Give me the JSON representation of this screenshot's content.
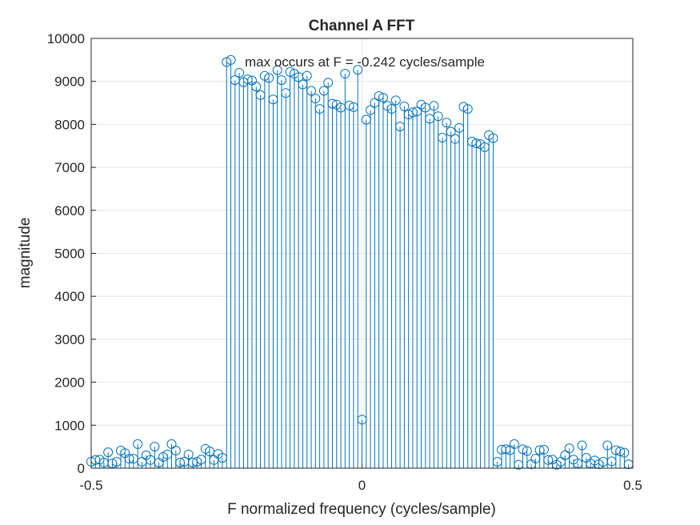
{
  "chart_data": {
    "type": "stem",
    "title": "Channel A FFT",
    "x_label": "F normalized frequency (cycles/sample)",
    "y_label": "magnitude",
    "annotation": "max occurs at F = -0.242 cycles/sample",
    "x": [
      -0.5,
      -0.4921875,
      -0.484375,
      -0.4765625,
      -0.46875,
      -0.4609375,
      -0.453125,
      -0.4453125,
      -0.4375,
      -0.4296875,
      -0.421875,
      -0.4140625,
      -0.40625,
      -0.3984375,
      -0.390625,
      -0.3828125,
      -0.375,
      -0.3671875,
      -0.359375,
      -0.3515625,
      -0.34375,
      -0.3359375,
      -0.328125,
      -0.3203125,
      -0.3125,
      -0.3046875,
      -0.296875,
      -0.2890625,
      -0.28125,
      -0.2734375,
      -0.265625,
      -0.2578125,
      -0.25,
      -0.2421875,
      -0.234375,
      -0.2265625,
      -0.21875,
      -0.2109375,
      -0.203125,
      -0.1953125,
      -0.1875,
      -0.1796875,
      -0.171875,
      -0.1640625,
      -0.15625,
      -0.1484375,
      -0.140625,
      -0.1328125,
      -0.125,
      -0.1171875,
      -0.109375,
      -0.1015625,
      -0.09375,
      -0.0859375,
      -0.078125,
      -0.0703125,
      -0.0625,
      -0.0546875,
      -0.046875,
      -0.0390625,
      -0.03125,
      -0.0234375,
      -0.015625,
      -0.0078125,
      0,
      0.0078125,
      0.015625,
      0.0234375,
      0.03125,
      0.0390625,
      0.046875,
      0.0546875,
      0.0625,
      0.0703125,
      0.078125,
      0.0859375,
      0.09375,
      0.1015625,
      0.109375,
      0.1171875,
      0.125,
      0.1328125,
      0.140625,
      0.1484375,
      0.15625,
      0.1640625,
      0.171875,
      0.1796875,
      0.1875,
      0.1953125,
      0.203125,
      0.2109375,
      0.21875,
      0.2265625,
      0.234375,
      0.2421875,
      0.25,
      0.2578125,
      0.265625,
      0.2734375,
      0.28125,
      0.2890625,
      0.296875,
      0.3046875,
      0.3125,
      0.3203125,
      0.328125,
      0.3359375,
      0.34375,
      0.3515625,
      0.359375,
      0.3671875,
      0.375,
      0.3828125,
      0.390625,
      0.3984375,
      0.40625,
      0.4140625,
      0.421875,
      0.4296875,
      0.4375,
      0.4453125,
      0.453125,
      0.4609375,
      0.46875,
      0.4765625,
      0.484375,
      0.4921875
    ],
    "values": [
      150,
      190,
      200,
      130,
      370,
      110,
      150,
      410,
      350,
      220,
      220,
      560,
      150,
      300,
      190,
      500,
      130,
      260,
      320,
      560,
      410,
      130,
      150,
      320,
      130,
      150,
      200,
      450,
      390,
      190,
      330,
      240,
      9450,
      9500,
      9030,
      9200,
      8980,
      9050,
      9020,
      8880,
      8680,
      9130,
      9080,
      8580,
      9260,
      9030,
      8730,
      9220,
      9180,
      9100,
      8930,
      9130,
      8780,
      8600,
      8360,
      8780,
      8970,
      8480,
      8460,
      8390,
      9180,
      8440,
      8400,
      9270,
      1130,
      8110,
      8330,
      8500,
      8660,
      8620,
      8430,
      8360,
      8560,
      7950,
      8420,
      8230,
      8280,
      8300,
      8460,
      8390,
      8130,
      8430,
      8190,
      7690,
      8040,
      7830,
      7660,
      7920,
      8410,
      8360,
      7600,
      7560,
      7540,
      7470,
      7750,
      7680,
      150,
      430,
      440,
      420,
      560,
      80,
      440,
      400,
      90,
      220,
      420,
      430,
      190,
      200,
      80,
      150,
      300,
      460,
      200,
      110,
      530,
      240,
      110,
      180,
      90,
      150,
      530,
      160,
      420,
      390,
      360,
      90
    ],
    "color": "#0072bd",
    "xlim": [
      -0.5,
      0.5
    ],
    "xticks": [
      -0.5,
      0,
      0.5
    ],
    "ylim": [
      0,
      10000
    ],
    "yticks": [
      0,
      1000,
      2000,
      3000,
      4000,
      5000,
      6000,
      7000,
      8000,
      9000,
      10000
    ],
    "grid": true
  }
}
